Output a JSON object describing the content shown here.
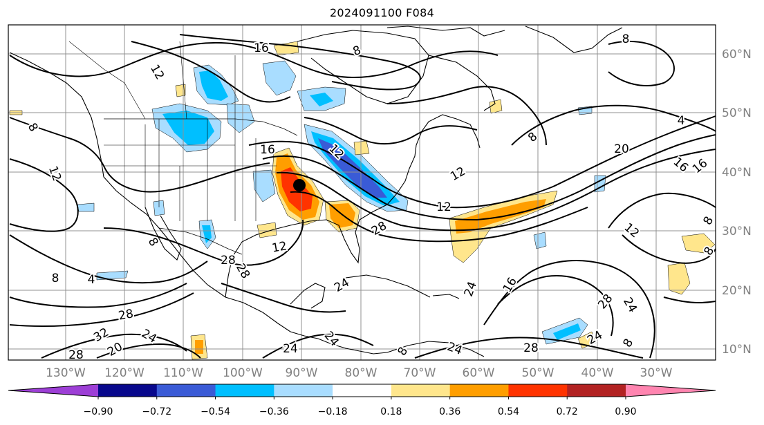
{
  "title": "2024091100 F084",
  "latitude_labels": [
    "60°N",
    "50°N",
    "40°N",
    "30°N",
    "20°N",
    "10°N"
  ],
  "longitude_labels": [
    "130°W",
    "120°W",
    "110°W",
    "100°W",
    "90°W",
    "80°W",
    "70°W",
    "60°W",
    "50°W",
    "40°W",
    "30°W"
  ],
  "contour_labels": [
    "16",
    "8",
    "12",
    "8",
    "8",
    "4",
    "12",
    "16",
    "16",
    "20",
    "12",
    "8",
    "12",
    "12",
    "16",
    "8",
    "12",
    "28",
    "28",
    "12",
    "8",
    "4",
    "28",
    "24",
    "28",
    "32",
    "20",
    "24",
    "24",
    "16",
    "28",
    "24",
    "24",
    "24",
    "8",
    "8",
    "8",
    "24",
    "28",
    "24",
    "28",
    "8"
  ],
  "colorbar": {
    "labels": [
      "−0.90",
      "−0.72",
      "−0.54",
      "−0.36",
      "−0.18",
      "0.18",
      "0.36",
      "0.54",
      "0.72",
      "0.90"
    ],
    "colors": [
      "#9d3fd6",
      "#08088c",
      "#3a5bd6",
      "#00bfff",
      "#a9ddff",
      "#ffffff",
      "#ffe68c",
      "#ff9e00",
      "#ff3300",
      "#b22222",
      "#ff85b0"
    ]
  },
  "colors": {
    "frame": "#000000",
    "grid": "#909090",
    "coast": "#000000",
    "contour": "#000000",
    "storm_marker": "#000000"
  }
}
